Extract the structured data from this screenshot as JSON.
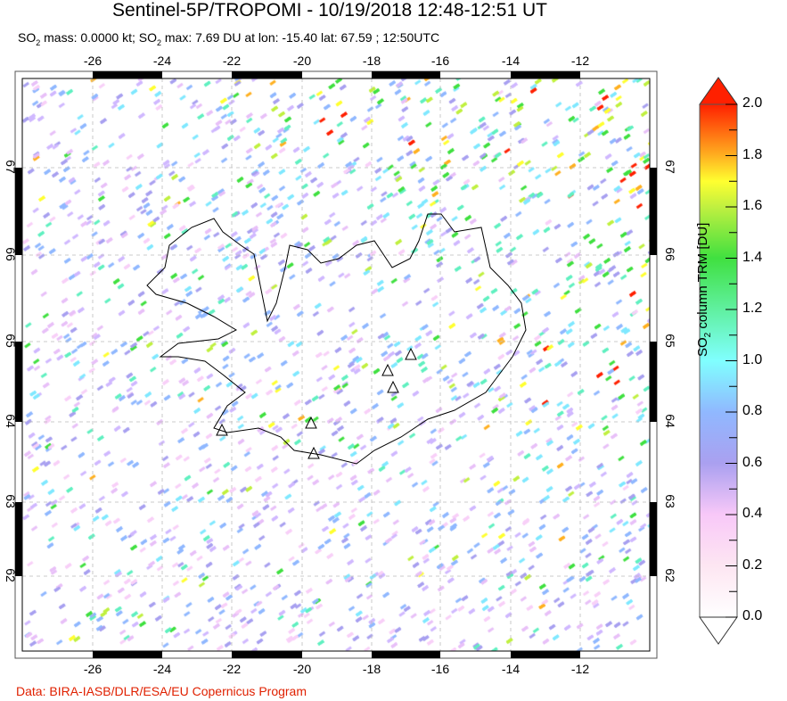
{
  "title": "Sentinel-5P/TROPOMI - 10/19/2018 12:48-12:51 UT",
  "subtitle": {
    "mass_label": "SO",
    "mass_sub": "2",
    "mass_text": " mass: 0.0000 kt; SO",
    "max_sub": "2",
    "max_text": " max: 7.69 DU at lon: -15.40 lat: 67.59 ; 12:50UTC"
  },
  "map": {
    "lon_ticks": [
      "-26",
      "-24",
      "-22",
      "-20",
      "-18",
      "-16",
      "-14",
      "-12"
    ],
    "lat_ticks": [
      "67",
      "66",
      "65",
      "64",
      "63",
      "62"
    ],
    "volcano_icon": "triangle-outline",
    "data_color_high": "#ff2000"
  },
  "colorbar": {
    "ticks": [
      "2.0",
      "1.8",
      "1.6",
      "1.4",
      "1.2",
      "1.0",
      "0.8",
      "0.6",
      "0.4",
      "0.2",
      "0.0"
    ],
    "label_pre": "SO",
    "label_sub": "2",
    "label_post": " column TRM [DU]",
    "range": [
      0,
      2.0
    ]
  },
  "credit": "Data: BIRA-IASB/DLR/ESA/EU Copernicus Program"
}
